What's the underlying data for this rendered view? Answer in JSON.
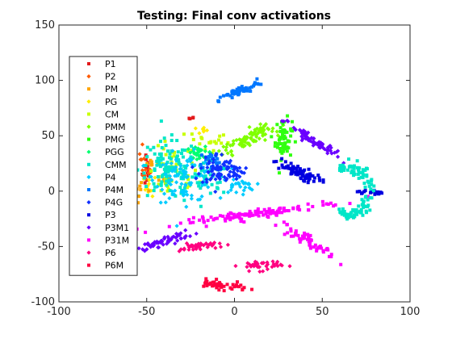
{
  "chart_data": {
    "type": "scatter",
    "title": "Testing: Final conv activations",
    "xlabel": "",
    "ylabel": "",
    "xlim": [
      -100,
      100
    ],
    "ylim": [
      -100,
      150
    ],
    "xticks": [
      "-100",
      "-50",
      "0",
      "50",
      "100"
    ],
    "yticks": [
      "-100",
      "-50",
      "0",
      "50",
      "100",
      "150"
    ],
    "grid": false,
    "legend_placement": "top-left",
    "series": [
      {
        "name": "P1",
        "color": "#e31a1c",
        "marker": "square",
        "clusters": [
          {
            "cx": -50,
            "cy": 20,
            "rx": 2,
            "ry": 15,
            "angle": 0,
            "n": 14
          },
          {
            "cx": -25,
            "cy": 65,
            "rx": 2,
            "ry": 2,
            "angle": 0,
            "n": 4
          }
        ]
      },
      {
        "name": "P2",
        "color": "#ff5a00",
        "marker": "diamond",
        "clusters": [
          {
            "cx": -52,
            "cy": 30,
            "rx": 2,
            "ry": 10,
            "angle": 0,
            "n": 8
          },
          {
            "cx": -49,
            "cy": 15,
            "rx": 2,
            "ry": 5,
            "angle": 0,
            "n": 6
          }
        ]
      },
      {
        "name": "PM",
        "color": "#ffa500",
        "marker": "square",
        "clusters": [
          {
            "cx": -45,
            "cy": 25,
            "rx": 4,
            "ry": 3,
            "angle": 0,
            "n": 8
          },
          {
            "cx": -40,
            "cy": 10,
            "rx": 3,
            "ry": 2,
            "angle": 0,
            "n": 6
          }
        ]
      },
      {
        "name": "PG",
        "color": "#ffee00",
        "marker": "diamond",
        "clusters": [
          {
            "cx": -48,
            "cy": 5,
            "rx": 3,
            "ry": 8,
            "angle": 0,
            "n": 10
          },
          {
            "cx": -20,
            "cy": 55,
            "rx": 5,
            "ry": 3,
            "angle": 0,
            "n": 8
          }
        ]
      },
      {
        "name": "CM",
        "color": "#c8ff00",
        "marker": "square",
        "clusters": [
          {
            "cx": -35,
            "cy": 15,
            "rx": 12,
            "ry": 20,
            "angle": 0,
            "n": 40
          },
          {
            "cx": -15,
            "cy": 45,
            "rx": 10,
            "ry": 10,
            "angle": 0,
            "n": 20
          }
        ]
      },
      {
        "name": "PMM",
        "color": "#80ff00",
        "marker": "diamond",
        "clusters": [
          {
            "cx": 5,
            "cy": 45,
            "rx": 20,
            "ry": 5,
            "angle": 35,
            "n": 70
          },
          {
            "cx": 15,
            "cy": 55,
            "rx": 6,
            "ry": 4,
            "angle": 0,
            "n": 20
          }
        ]
      },
      {
        "name": "PMG",
        "color": "#30ff10",
        "marker": "square",
        "clusters": [
          {
            "cx": 28,
            "cy": 47,
            "rx": 4,
            "ry": 15,
            "angle": 0,
            "n": 60
          }
        ]
      },
      {
        "name": "PGG",
        "color": "#00ff70",
        "marker": "diamond",
        "clusters": [
          {
            "cx": -20,
            "cy": 35,
            "rx": 6,
            "ry": 4,
            "angle": 0,
            "n": 25
          }
        ]
      },
      {
        "name": "CMM",
        "color": "#00e6c8",
        "marker": "square",
        "clusters": [
          {
            "cx": -38,
            "cy": 20,
            "rx": 14,
            "ry": 22,
            "angle": 0,
            "n": 110
          },
          {
            "cx": -15,
            "cy": 10,
            "rx": 10,
            "ry": 12,
            "angle": 0,
            "n": 40
          }
        ]
      },
      {
        "name": "P4",
        "color": "#00ccff",
        "marker": "diamond",
        "clusters": [
          {
            "cx": -28,
            "cy": 12,
            "rx": 14,
            "ry": 18,
            "angle": 0,
            "n": 90
          },
          {
            "cx": 2,
            "cy": 5,
            "rx": 8,
            "ry": 6,
            "angle": 0,
            "n": 30
          }
        ]
      },
      {
        "name": "P4M",
        "color": "#0077ff",
        "marker": "square",
        "clusters": [
          {
            "cx": 3,
            "cy": 90,
            "rx": 12,
            "ry": 3,
            "angle": 35,
            "n": 55
          },
          {
            "cx": -12,
            "cy": 28,
            "rx": 7,
            "ry": 7,
            "angle": 0,
            "n": 25
          }
        ]
      },
      {
        "name": "P4G",
        "color": "#1030ff",
        "marker": "diamond",
        "clusters": [
          {
            "cx": -10,
            "cy": 20,
            "rx": 8,
            "ry": 12,
            "angle": 0,
            "n": 60
          },
          {
            "cx": 0,
            "cy": 18,
            "rx": 5,
            "ry": 6,
            "angle": 0,
            "n": 30
          }
        ]
      },
      {
        "name": "P3",
        "color": "#0000e0",
        "marker": "square",
        "clusters": [
          {
            "cx": 35,
            "cy": 18,
            "rx": 13,
            "ry": 4,
            "angle": -35,
            "n": 70
          },
          {
            "cx": 77,
            "cy": -1,
            "rx": 6,
            "ry": 2,
            "angle": 0,
            "n": 18
          }
        ]
      },
      {
        "name": "P3M1",
        "color": "#6a00ff",
        "marker": "diamond",
        "clusters": [
          {
            "cx": 45,
            "cy": 45,
            "rx": 19,
            "ry": 3,
            "angle": -45,
            "n": 70
          },
          {
            "cx": -40,
            "cy": -45,
            "rx": 15,
            "ry": 3,
            "angle": 25,
            "n": 60
          }
        ]
      },
      {
        "name": "P31M",
        "color": "#ff00ff",
        "marker": "square",
        "clusters": [
          {
            "cx": 15,
            "cy": -20,
            "rx": 40,
            "ry": 3,
            "angle": 12,
            "n": 120
          },
          {
            "cx": 42,
            "cy": -45,
            "rx": 18,
            "ry": 3,
            "angle": -45,
            "n": 60
          }
        ]
      },
      {
        "name": "P6",
        "color": "#ff0080",
        "marker": "diamond",
        "clusters": [
          {
            "cx": 15,
            "cy": -67,
            "rx": 10,
            "ry": 4,
            "angle": 0,
            "n": 40
          },
          {
            "cx": -20,
            "cy": -50,
            "rx": 10,
            "ry": 3,
            "angle": 10,
            "n": 40
          }
        ]
      },
      {
        "name": "P6M",
        "color": "#ff0040",
        "marker": "square",
        "clusters": [
          {
            "cx": -8,
            "cy": -85,
            "rx": 13,
            "ry": 3,
            "angle": -10,
            "n": 45
          }
        ]
      }
    ],
    "extra_clusters": [
      {
        "series": "CMM",
        "shape": "crescent",
        "center": [
          58,
          0
        ],
        "radius": 22,
        "start_deg": 60,
        "end_deg": 300,
        "n": 120
      },
      {
        "series": "PM",
        "shape": "blob",
        "center": [
          -55,
          0
        ],
        "radius": 3,
        "n": 12
      }
    ]
  }
}
